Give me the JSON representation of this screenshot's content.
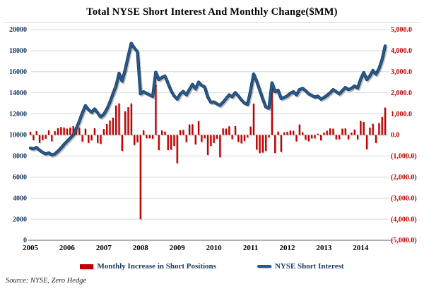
{
  "title": "Total NYSE Short Interest And Monthly Change($MM)",
  "source": "Source: NYSE, Zero Hedge",
  "legend": [
    {
      "label": "Monthly Increase in Short Positions",
      "color": "#c00000",
      "marker": "bar-swatch"
    },
    {
      "label": "NYSE Short Interest",
      "color": "#27598c",
      "marker": "line-swatch"
    }
  ],
  "chart_data": {
    "type": "combo-bar-line",
    "x_start": "2005-01",
    "x_end": "2014-09",
    "x_frequency": "monthly",
    "x_tick_labels": [
      "2005",
      "2006",
      "2007",
      "2008",
      "2009",
      "2010",
      "2011",
      "2012",
      "2013",
      "2014"
    ],
    "x_tick_month_indices": [
      0,
      12,
      24,
      36,
      48,
      60,
      72,
      84,
      96,
      108
    ],
    "grid": true,
    "gridline_color": "#d9d9d9",
    "axis_line_color": "#808080",
    "left_axis": {
      "title": "",
      "min": 0,
      "max": 20000,
      "step": 2000,
      "label_color": "#17375e",
      "tick_labels": [
        "20000",
        "18000",
        "16000",
        "14000",
        "12000",
        "10000",
        "8000",
        "6000",
        "4000",
        "2000",
        "0"
      ]
    },
    "right_axis": {
      "title": "",
      "min": -5000,
      "max": 5000,
      "step": 1000,
      "label_color": "#c00000",
      "tick_labels": [
        "5,000.0",
        "4,000.0",
        "3,000.0",
        "2,000.0",
        "1,000.0",
        "0.0",
        "(1,000.0)",
        "(2,000.0)",
        "(3,000.0)",
        "(4,000.0)",
        "(5,000.0)"
      ]
    },
    "series": [
      {
        "name": "Monthly Increase in Short Positions",
        "type": "bar",
        "axis": "right",
        "color": "#c00000",
        "values": [
          150,
          -250,
          180,
          -380,
          -250,
          -180,
          220,
          -300,
          180,
          320,
          380,
          350,
          300,
          350,
          420,
          380,
          350,
          -320,
          300,
          -380,
          -260,
          320,
          -380,
          -420,
          280,
          520,
          680,
          820,
          1400,
          1500,
          -760,
          1120,
          1320,
          1500,
          -480,
          -350,
          -4000,
          220,
          -160,
          -160,
          -180,
          2400,
          -720,
          210,
          160,
          -720,
          -700,
          -520,
          -1340,
          230,
          240,
          -340,
          500,
          510,
          -450,
          660,
          -330,
          -160,
          -950,
          -520,
          -380,
          -180,
          -1060,
          310,
          300,
          410,
          -200,
          420,
          -330,
          -400,
          -290,
          -120,
          400,
          1490,
          -700,
          -860,
          -840,
          -760,
          -120,
          2300,
          -860,
          160,
          -810,
          120,
          150,
          210,
          200,
          -310,
          500,
          130,
          -230,
          -300,
          -160,
          -160,
          60,
          -260,
          110,
          200,
          310,
          300,
          -210,
          -200,
          300,
          310,
          -210,
          110,
          260,
          -210,
          660,
          620,
          -680,
          350,
          530,
          -380,
          560,
          860,
          1300
        ]
      },
      {
        "name": "NYSE Short Interest",
        "type": "line",
        "axis": "left",
        "color": "#27598c",
        "values": [
          8750,
          8680,
          8800,
          8550,
          8350,
          8200,
          8300,
          8100,
          8200,
          8450,
          8750,
          9100,
          9400,
          9700,
          10000,
          10600,
          11300,
          12100,
          12780,
          12400,
          12150,
          12470,
          12100,
          11700,
          11950,
          12440,
          13100,
          13900,
          14650,
          15850,
          15100,
          16200,
          17500,
          18700,
          18250,
          17900,
          13900,
          14100,
          13950,
          13800,
          13650,
          15950,
          15250,
          15450,
          15600,
          14900,
          14200,
          13700,
          13400,
          13900,
          14130,
          13800,
          14300,
          14800,
          14360,
          15020,
          14700,
          14550,
          13600,
          13100,
          13130,
          12950,
          12800,
          13100,
          13450,
          13800,
          13620,
          14020,
          13700,
          13320,
          13020,
          12910,
          14200,
          15790,
          15100,
          14240,
          13400,
          12650,
          12540,
          14950,
          14100,
          14250,
          13450,
          13560,
          13700,
          13950,
          14100,
          13800,
          14300,
          14420,
          14200,
          13900,
          13750,
          13600,
          13680,
          13400,
          13550,
          13750,
          14000,
          14300,
          14100,
          13900,
          14200,
          14500,
          14300,
          14420,
          14650,
          14450,
          15300,
          15920,
          15250,
          15600,
          16120,
          15750,
          16300,
          17150,
          18450
        ]
      }
    ]
  }
}
